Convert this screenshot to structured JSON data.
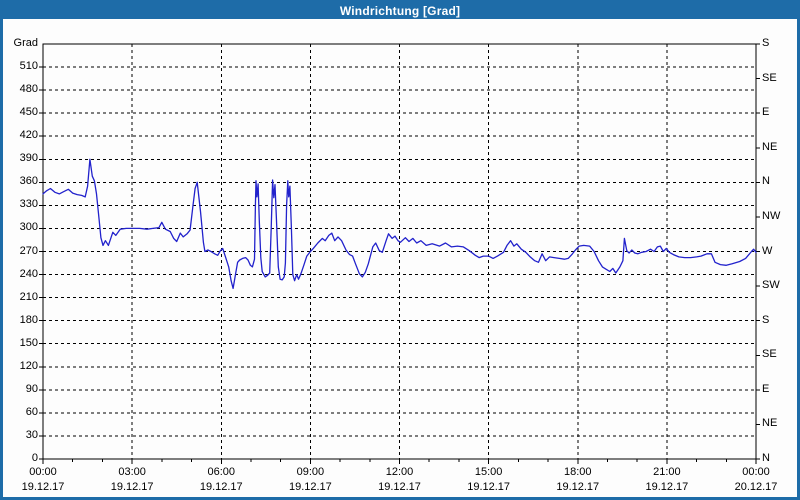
{
  "window": {
    "title": "Windrichtung [Grad]"
  },
  "colors": {
    "title_bg": "#1E6CA8",
    "title_text": "#FFFFFF",
    "frame_border": "#1E6CA8",
    "plot_border": "#000000",
    "grid": "#000000",
    "line": "#2222CC",
    "text": "#000000",
    "background": "#FDFDFD"
  },
  "y_axis_left": {
    "unit_label": "Grad",
    "ticks": [
      0,
      30,
      60,
      90,
      120,
      150,
      180,
      210,
      240,
      270,
      300,
      330,
      360,
      390,
      420,
      450,
      480,
      510
    ]
  },
  "y_axis_right": {
    "ticks": [
      {
        "value": 540,
        "label": "S"
      },
      {
        "value": 495,
        "label": "SE"
      },
      {
        "value": 450,
        "label": "E"
      },
      {
        "value": 405,
        "label": "NE"
      },
      {
        "value": 360,
        "label": "N"
      },
      {
        "value": 315,
        "label": "NW"
      },
      {
        "value": 270,
        "label": "W"
      },
      {
        "value": 225,
        "label": "SW"
      },
      {
        "value": 180,
        "label": "S"
      },
      {
        "value": 135,
        "label": "SE"
      },
      {
        "value": 90,
        "label": "E"
      },
      {
        "value": 45,
        "label": "NE"
      },
      {
        "value": 0,
        "label": "N"
      }
    ]
  },
  "x_axis": {
    "ticks": [
      {
        "hour": 0,
        "time": "00:00",
        "date": "19.12.17"
      },
      {
        "hour": 3,
        "time": "03:00",
        "date": "19.12.17"
      },
      {
        "hour": 6,
        "time": "06:00",
        "date": "19.12.17"
      },
      {
        "hour": 9,
        "time": "09:00",
        "date": "19.12.17"
      },
      {
        "hour": 12,
        "time": "12:00",
        "date": "19.12.17"
      },
      {
        "hour": 15,
        "time": "15:00",
        "date": "19.12.17"
      },
      {
        "hour": 18,
        "time": "18:00",
        "date": "19.12.17"
      },
      {
        "hour": 21,
        "time": "21:00",
        "date": "19.12.17"
      },
      {
        "hour": 24,
        "time": "00:00",
        "date": "20.12.17"
      }
    ],
    "minor_tick_every_hours": 1
  },
  "chart_data": {
    "type": "line",
    "title": "Windrichtung [Grad]",
    "ylabel": "Grad",
    "xlabel": "",
    "ylim": [
      0,
      540
    ],
    "y_gridline_step": 30,
    "x_range_hours": [
      0,
      24
    ],
    "x_gridline_step_hours": 3,
    "grid": "dashed",
    "legend": "none",
    "series": [
      {
        "name": "Windrichtung",
        "color": "#2222CC",
        "points": [
          [
            0,
            345
          ],
          [
            0.12,
            349
          ],
          [
            0.25,
            352
          ],
          [
            0.4,
            347
          ],
          [
            0.55,
            345
          ],
          [
            0.7,
            348
          ],
          [
            0.85,
            351
          ],
          [
            1.0,
            346
          ],
          [
            1.15,
            344
          ],
          [
            1.3,
            343
          ],
          [
            1.42,
            341
          ],
          [
            1.5,
            355
          ],
          [
            1.58,
            390
          ],
          [
            1.66,
            368
          ],
          [
            1.73,
            362
          ],
          [
            1.8,
            345
          ],
          [
            1.87,
            318
          ],
          [
            1.95,
            288
          ],
          [
            2.02,
            278
          ],
          [
            2.1,
            284
          ],
          [
            2.2,
            278
          ],
          [
            2.35,
            295
          ],
          [
            2.45,
            291
          ],
          [
            2.6,
            299
          ],
          [
            2.8,
            300
          ],
          [
            3.0,
            300
          ],
          [
            3.25,
            300
          ],
          [
            3.5,
            299
          ],
          [
            3.7,
            300
          ],
          [
            3.9,
            301
          ],
          [
            4.0,
            308
          ],
          [
            4.12,
            299
          ],
          [
            4.28,
            296
          ],
          [
            4.4,
            287
          ],
          [
            4.5,
            283
          ],
          [
            4.62,
            294
          ],
          [
            4.72,
            289
          ],
          [
            4.85,
            293
          ],
          [
            4.95,
            298
          ],
          [
            5.05,
            330
          ],
          [
            5.12,
            352
          ],
          [
            5.19,
            360
          ],
          [
            5.3,
            322
          ],
          [
            5.4,
            282
          ],
          [
            5.45,
            270
          ],
          [
            5.55,
            272
          ],
          [
            5.65,
            270
          ],
          [
            5.78,
            267
          ],
          [
            5.88,
            265
          ],
          [
            5.97,
            271
          ],
          [
            6.05,
            274
          ],
          [
            6.15,
            262
          ],
          [
            6.25,
            250
          ],
          [
            6.33,
            232
          ],
          [
            6.4,
            222
          ],
          [
            6.47,
            238
          ],
          [
            6.55,
            256
          ],
          [
            6.62,
            259
          ],
          [
            6.72,
            261
          ],
          [
            6.82,
            262
          ],
          [
            6.9,
            259
          ],
          [
            6.98,
            252
          ],
          [
            7.05,
            250
          ],
          [
            7.12,
            260
          ],
          [
            7.15,
            330
          ],
          [
            7.17,
            362
          ],
          [
            7.2,
            341
          ],
          [
            7.24,
            358
          ],
          [
            7.28,
            310
          ],
          [
            7.33,
            262
          ],
          [
            7.38,
            244
          ],
          [
            7.48,
            237
          ],
          [
            7.56,
            239
          ],
          [
            7.63,
            242
          ],
          [
            7.68,
            300
          ],
          [
            7.73,
            363
          ],
          [
            7.77,
            340
          ],
          [
            7.81,
            357
          ],
          [
            7.86,
            310
          ],
          [
            7.92,
            250
          ],
          [
            7.98,
            234
          ],
          [
            8.05,
            233
          ],
          [
            8.12,
            237
          ],
          [
            8.16,
            255
          ],
          [
            8.2,
            330
          ],
          [
            8.24,
            362
          ],
          [
            8.27,
            341
          ],
          [
            8.31,
            355
          ],
          [
            8.36,
            300
          ],
          [
            8.41,
            240
          ],
          [
            8.47,
            232
          ],
          [
            8.54,
            240
          ],
          [
            8.6,
            234
          ],
          [
            8.68,
            241
          ],
          [
            8.78,
            252
          ],
          [
            8.88,
            264
          ],
          [
            9.0,
            270
          ],
          [
            9.1,
            274
          ],
          [
            9.25,
            281
          ],
          [
            9.4,
            287
          ],
          [
            9.5,
            284
          ],
          [
            9.62,
            291
          ],
          [
            9.72,
            294
          ],
          [
            9.82,
            284
          ],
          [
            9.93,
            289
          ],
          [
            10.05,
            284
          ],
          [
            10.2,
            272
          ],
          [
            10.32,
            266
          ],
          [
            10.42,
            264
          ],
          [
            10.52,
            254
          ],
          [
            10.65,
            241
          ],
          [
            10.75,
            237
          ],
          [
            10.85,
            243
          ],
          [
            10.95,
            254
          ],
          [
            11.1,
            276
          ],
          [
            11.2,
            281
          ],
          [
            11.32,
            271
          ],
          [
            11.42,
            269
          ],
          [
            11.55,
            284
          ],
          [
            11.63,
            293
          ],
          [
            11.75,
            287
          ],
          [
            11.85,
            290
          ],
          [
            11.95,
            284
          ],
          [
            12.03,
            282
          ],
          [
            12.2,
            288
          ],
          [
            12.32,
            283
          ],
          [
            12.45,
            287
          ],
          [
            12.58,
            281
          ],
          [
            12.72,
            284
          ],
          [
            12.9,
            278
          ],
          [
            13.1,
            280
          ],
          [
            13.35,
            277
          ],
          [
            13.55,
            281
          ],
          [
            13.75,
            276
          ],
          [
            13.95,
            277
          ],
          [
            14.15,
            276
          ],
          [
            14.35,
            271
          ],
          [
            14.55,
            265
          ],
          [
            14.68,
            262
          ],
          [
            14.82,
            264
          ],
          [
            15.0,
            264
          ],
          [
            15.15,
            261
          ],
          [
            15.3,
            264
          ],
          [
            15.5,
            269
          ],
          [
            15.62,
            278
          ],
          [
            15.74,
            284
          ],
          [
            15.85,
            277
          ],
          [
            15.95,
            280
          ],
          [
            16.1,
            273
          ],
          [
            16.25,
            269
          ],
          [
            16.4,
            263
          ],
          [
            16.55,
            258
          ],
          [
            16.68,
            256
          ],
          [
            16.8,
            267
          ],
          [
            16.92,
            258
          ],
          [
            17.05,
            263
          ],
          [
            17.2,
            262
          ],
          [
            17.38,
            261
          ],
          [
            17.55,
            260
          ],
          [
            17.68,
            261
          ],
          [
            17.8,
            266
          ],
          [
            17.92,
            272
          ],
          [
            18.05,
            277
          ],
          [
            18.2,
            278
          ],
          [
            18.4,
            277
          ],
          [
            18.55,
            270
          ],
          [
            18.7,
            258
          ],
          [
            18.83,
            250
          ],
          [
            18.95,
            247
          ],
          [
            19.08,
            244
          ],
          [
            19.18,
            248
          ],
          [
            19.28,
            242
          ],
          [
            19.42,
            250
          ],
          [
            19.52,
            258
          ],
          [
            19.57,
            287
          ],
          [
            19.65,
            271
          ],
          [
            19.73,
            268
          ],
          [
            19.82,
            272
          ],
          [
            19.92,
            268
          ],
          [
            20.02,
            267
          ],
          [
            20.15,
            269
          ],
          [
            20.3,
            270
          ],
          [
            20.45,
            273
          ],
          [
            20.57,
            270
          ],
          [
            20.68,
            276
          ],
          [
            20.78,
            277
          ],
          [
            20.88,
            270
          ],
          [
            20.98,
            274
          ],
          [
            21.08,
            269
          ],
          [
            21.22,
            266
          ],
          [
            21.4,
            263
          ],
          [
            21.6,
            262
          ],
          [
            21.8,
            262
          ],
          [
            22.0,
            263
          ],
          [
            22.15,
            264
          ],
          [
            22.35,
            267
          ],
          [
            22.5,
            267
          ],
          [
            22.62,
            256
          ],
          [
            22.8,
            253
          ],
          [
            23.0,
            252
          ],
          [
            23.2,
            254
          ],
          [
            23.45,
            257
          ],
          [
            23.65,
            261
          ],
          [
            23.85,
            270
          ],
          [
            23.92,
            273
          ],
          [
            24.0,
            269
          ]
        ]
      }
    ]
  }
}
